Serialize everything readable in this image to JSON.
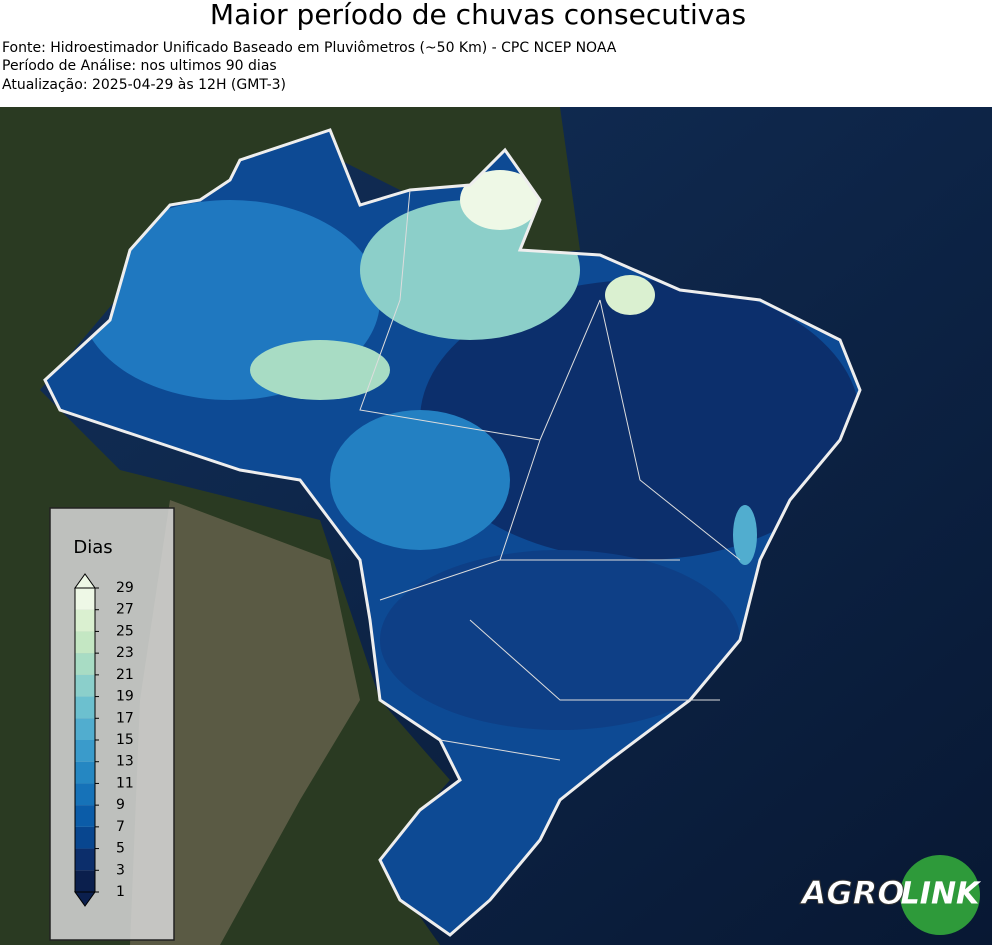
{
  "header": {
    "title": "Maior período de chuvas consecutivas",
    "lines": [
      "Fonte: Hidroestimador Unificado Baseado em Pluviômetros (~50 Km) - CPC NCEP NOAA",
      "Período de Análise: nos ultimos 90 dias",
      "Atualização: 2025-04-29 às 12H (GMT-3)"
    ]
  },
  "colorbar": {
    "title": "Dias",
    "ticks": [
      1,
      3,
      5,
      7,
      9,
      11,
      13,
      15,
      17,
      19,
      21,
      23,
      25,
      27,
      29
    ],
    "colors": [
      "#0b1f4d",
      "#0c2e6b",
      "#08468f",
      "#0b5ca8",
      "#1672b8",
      "#2587c2",
      "#3a9bcb",
      "#51adcf",
      "#6cc0cf",
      "#8bcfcb",
      "#a8dcc4",
      "#c4e7c3",
      "#daf0d0",
      "#eef8e6"
    ]
  },
  "logo": {
    "left": "AGRO",
    "right": "LINK"
  }
}
